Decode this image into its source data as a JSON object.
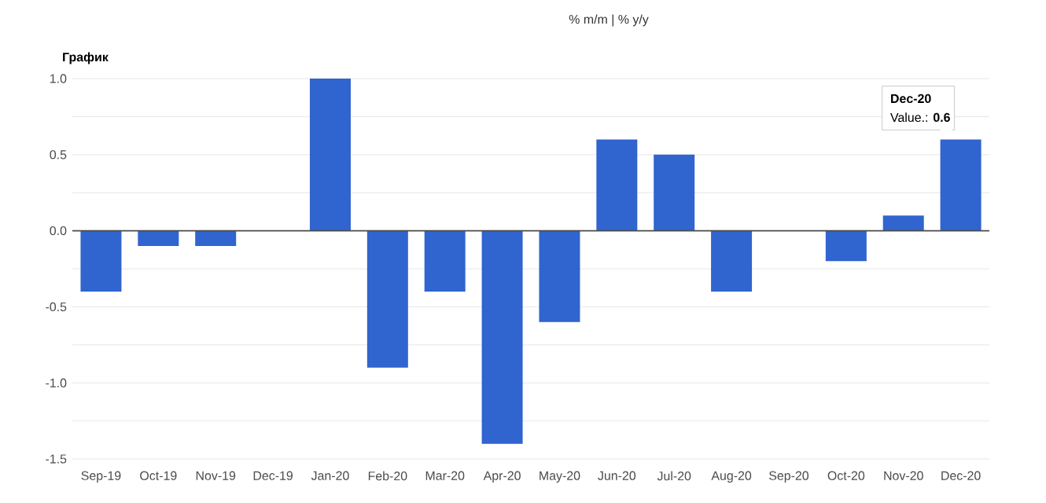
{
  "chart_data": {
    "type": "bar",
    "title": "График",
    "subtitle": "% m/m | % y/y",
    "categories": [
      "Sep-19",
      "Oct-19",
      "Nov-19",
      "Dec-19",
      "Jan-20",
      "Feb-20",
      "Mar-20",
      "Apr-20",
      "May-20",
      "Jun-20",
      "Jul-20",
      "Aug-20",
      "Sep-20",
      "Oct-20",
      "Nov-20",
      "Dec-20"
    ],
    "values": [
      -0.4,
      -0.1,
      -0.1,
      0,
      1.0,
      -0.9,
      -0.4,
      -1.4,
      -0.6,
      0.6,
      0.5,
      -0.4,
      0,
      -0.2,
      0.1,
      0.6
    ],
    "color": "#3064cf",
    "ylim": [
      -1.5,
      1.0
    ],
    "yticks": [
      {
        "value": -1.5,
        "label": "-1.5"
      },
      {
        "value": -1.25,
        "label": null
      },
      {
        "value": -1.0,
        "label": "-1.0"
      },
      {
        "value": -0.75,
        "label": null
      },
      {
        "value": -0.5,
        "label": "-0.5"
      },
      {
        "value": -0.25,
        "label": null
      },
      {
        "value": 0,
        "label": "0.0"
      },
      {
        "value": 0.25,
        "label": null
      },
      {
        "value": 0.5,
        "label": "0.5"
      },
      {
        "value": 0.75,
        "label": null
      },
      {
        "value": 1.0,
        "label": "1.0"
      }
    ],
    "grid": "y",
    "annotations": [
      "**Dec-20**",
      {
        "text": "Value.: **0.6**",
        "x": "Dec-20",
        "y": 0.6
      }
    ]
  }
}
